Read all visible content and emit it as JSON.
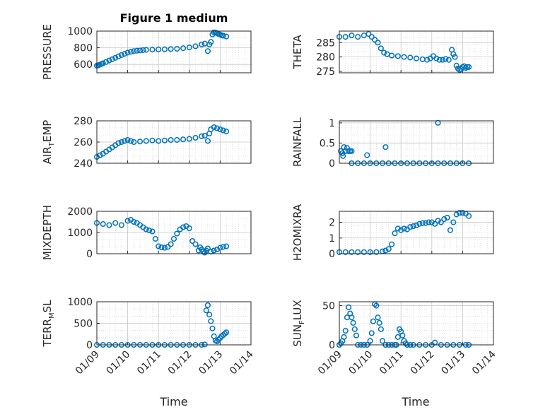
{
  "figure": {
    "title": "Figure 1 medium",
    "xlabel": "Time"
  },
  "chart_data": [
    {
      "type": "scatter",
      "ylabel": "PRESSURE",
      "ylim": [
        500,
        1000
      ],
      "yticks": [
        600,
        800,
        1000
      ],
      "xlim": [
        0,
        5
      ],
      "x": [
        0,
        0.05,
        0.1,
        0.15,
        0.2,
        0.3,
        0.4,
        0.5,
        0.6,
        0.7,
        0.8,
        0.9,
        1.0,
        1.1,
        1.2,
        1.3,
        1.4,
        1.5,
        1.6,
        1.8,
        2.0,
        2.2,
        2.4,
        2.6,
        2.8,
        3.0,
        3.2,
        3.4,
        3.5,
        3.6,
        3.65,
        3.7,
        3.75,
        3.8,
        3.85,
        3.9,
        3.95,
        4.0,
        4.05,
        4.1,
        4.2
      ],
      "y": [
        585,
        590,
        598,
        606,
        614,
        630,
        647,
        663,
        680,
        697,
        713,
        728,
        742,
        752,
        760,
        765,
        768,
        772,
        775,
        778,
        780,
        782,
        785,
        788,
        795,
        805,
        818,
        840,
        850,
        760,
        840,
        870,
        960,
        985,
        982,
        975,
        965,
        958,
        950,
        945,
        935
      ]
    },
    {
      "type": "scatter",
      "ylabel": "THETA",
      "ylim": [
        274.5,
        289
      ],
      "yticks": [
        275,
        280,
        285
      ],
      "xlim": [
        0,
        5
      ],
      "x": [
        0,
        0.2,
        0.4,
        0.6,
        0.8,
        0.95,
        1.05,
        1.15,
        1.25,
        1.35,
        1.45,
        1.55,
        1.7,
        1.9,
        2.1,
        2.3,
        2.5,
        2.7,
        2.85,
        2.95,
        3.05,
        3.15,
        3.25,
        3.35,
        3.45,
        3.55,
        3.65,
        3.7,
        3.75,
        3.8,
        3.85,
        3.9,
        3.95,
        4.0,
        4.05,
        4.1,
        4.15,
        4.2
      ],
      "y": [
        287,
        287,
        287.5,
        287,
        287.5,
        288,
        287,
        286,
        285,
        283,
        281.5,
        281,
        280.5,
        280.3,
        280,
        279.8,
        279.5,
        279.2,
        279,
        279.5,
        280.3,
        279.5,
        279,
        279,
        279.3,
        279,
        282.5,
        281,
        280,
        277,
        276,
        275.5,
        275.8,
        276.5,
        276.8,
        276.2,
        276.5,
        276.5
      ]
    },
    {
      "type": "scatter",
      "ylabel": "AIR_TEMP",
      "ylim": [
        240,
        280
      ],
      "yticks": [
        240,
        260,
        280
      ],
      "xlim": [
        0,
        5
      ],
      "x": [
        0,
        0.1,
        0.2,
        0.3,
        0.4,
        0.5,
        0.6,
        0.7,
        0.8,
        0.9,
        1.0,
        1.1,
        1.2,
        1.4,
        1.6,
        1.8,
        2.0,
        2.2,
        2.4,
        2.6,
        2.8,
        3.0,
        3.2,
        3.4,
        3.5,
        3.6,
        3.65,
        3.7,
        3.8,
        3.9,
        4.0,
        4.1,
        4.2
      ],
      "y": [
        246,
        247.5,
        249,
        251,
        253,
        255,
        257,
        259,
        260,
        261,
        262,
        261,
        260,
        260.5,
        261,
        261.5,
        261,
        261.5,
        262,
        262,
        262.5,
        263,
        264,
        265.5,
        266,
        261,
        268,
        272,
        274,
        273,
        272,
        271,
        270
      ]
    },
    {
      "type": "scatter",
      "ylabel": "RAINFALL",
      "ylim": [
        0,
        1.05
      ],
      "yticks": [
        0,
        0.5,
        1
      ],
      "xlim": [
        0,
        5
      ],
      "x": [
        0.05,
        0.1,
        0.12,
        0.15,
        0.2,
        0.25,
        0.3,
        0.35,
        0.4,
        0.9,
        1.5,
        3.2,
        0.4,
        0.6,
        0.8,
        1.0,
        1.2,
        1.4,
        1.6,
        1.8,
        2.0,
        2.2,
        2.4,
        2.6,
        2.8,
        3.0,
        3.2,
        3.4,
        3.6,
        3.8,
        4.0,
        4.2
      ],
      "y": [
        0.3,
        0.25,
        0.18,
        0.4,
        0.3,
        0.38,
        0.3,
        0.3,
        0.3,
        0.2,
        0.4,
        1.0,
        0,
        0,
        0,
        0,
        0,
        0,
        0,
        0,
        0,
        0,
        0,
        0,
        0,
        0,
        0,
        0,
        0,
        0,
        0,
        0
      ]
    },
    {
      "type": "scatter",
      "ylabel": "MIXDEPTH",
      "ylim": [
        0,
        2000
      ],
      "yticks": [
        0,
        1000,
        2000
      ],
      "xlim": [
        0,
        5
      ],
      "x": [
        0,
        0.2,
        0.4,
        0.6,
        0.8,
        1.0,
        1.1,
        1.2,
        1.3,
        1.4,
        1.5,
        1.6,
        1.7,
        1.8,
        1.9,
        2.0,
        2.1,
        2.2,
        2.3,
        2.4,
        2.5,
        2.6,
        2.7,
        2.8,
        2.9,
        3.0,
        3.1,
        3.2,
        3.3,
        3.35,
        3.4,
        3.45,
        3.5,
        3.55,
        3.6,
        3.7,
        3.8,
        3.9,
        4.0,
        4.1,
        4.2
      ],
      "y": [
        1450,
        1400,
        1350,
        1450,
        1350,
        1550,
        1600,
        1500,
        1450,
        1350,
        1250,
        1150,
        1100,
        1050,
        700,
        350,
        300,
        280,
        320,
        450,
        700,
        950,
        1150,
        1250,
        1300,
        1200,
        600,
        450,
        150,
        300,
        200,
        100,
        50,
        150,
        250,
        100,
        150,
        200,
        280,
        320,
        350
      ]
    },
    {
      "type": "scatter",
      "ylabel": "H2OMIXRA",
      "ylim": [
        0,
        2.7
      ],
      "yticks": [
        0,
        1,
        2
      ],
      "xlim": [
        0,
        5
      ],
      "x": [
        0,
        0.2,
        0.4,
        0.6,
        0.8,
        1.0,
        1.2,
        1.4,
        1.5,
        1.6,
        1.7,
        1.8,
        1.9,
        2.0,
        2.1,
        2.2,
        2.3,
        2.4,
        2.5,
        2.6,
        2.7,
        2.8,
        2.9,
        3.0,
        3.1,
        3.2,
        3.3,
        3.4,
        3.5,
        3.6,
        3.7,
        3.8,
        3.9,
        4.0,
        4.1,
        4.2
      ],
      "y": [
        0.1,
        0.1,
        0.1,
        0.1,
        0.1,
        0.1,
        0.1,
        0.15,
        0.2,
        0.3,
        0.6,
        1.3,
        1.6,
        1.5,
        1.6,
        1.55,
        1.7,
        1.75,
        1.8,
        1.9,
        1.95,
        1.95,
        2.0,
        2.0,
        1.9,
        2.1,
        2.0,
        2.2,
        2.3,
        1.5,
        2.0,
        2.5,
        2.6,
        2.6,
        2.55,
        2.4
      ]
    },
    {
      "type": "scatter",
      "ylabel": "TERR_MSL",
      "ylim": [
        0,
        1000
      ],
      "yticks": [
        0,
        500,
        1000
      ],
      "xlim": [
        0,
        5
      ],
      "x": [
        0,
        0.2,
        0.4,
        0.6,
        0.8,
        1.0,
        1.2,
        1.4,
        1.6,
        1.8,
        2.0,
        2.2,
        2.4,
        2.6,
        2.8,
        3.0,
        3.2,
        3.4,
        3.5,
        3.55,
        3.6,
        3.65,
        3.7,
        3.75,
        3.8,
        3.85,
        3.9,
        3.95,
        4.0,
        4.05,
        4.1,
        4.15,
        4.2
      ],
      "y": [
        0,
        0,
        0,
        0,
        0,
        0,
        0,
        0,
        0,
        0,
        0,
        0,
        0,
        0,
        0,
        0,
        0,
        0,
        10,
        800,
        920,
        700,
        550,
        380,
        200,
        100,
        80,
        120,
        160,
        200,
        230,
        260,
        290
      ]
    },
    {
      "type": "scatter",
      "ylabel": "SUN_FLUX",
      "ylim": [
        0,
        55
      ],
      "yticks": [
        0,
        50
      ],
      "xlim": [
        0,
        5
      ],
      "x": [
        0,
        0.05,
        0.1,
        0.15,
        0.2,
        0.25,
        0.3,
        0.35,
        0.4,
        0.45,
        0.5,
        0.55,
        0.6,
        0.7,
        0.8,
        0.9,
        1.0,
        1.05,
        1.1,
        1.15,
        1.2,
        1.25,
        1.3,
        1.35,
        1.4,
        1.5,
        1.6,
        1.7,
        1.8,
        1.85,
        1.9,
        1.95,
        2.0,
        2.05,
        2.1,
        2.15,
        2.2,
        2.3,
        2.4,
        2.6,
        2.8,
        3.0,
        3.1,
        3.3,
        3.5,
        3.7,
        3.9,
        4.1,
        4.2
      ],
      "y": [
        0,
        2,
        5,
        10,
        18,
        35,
        48,
        40,
        35,
        28,
        20,
        12,
        0,
        0,
        0,
        0,
        5,
        15,
        30,
        52,
        50,
        35,
        28,
        20,
        5,
        0,
        0,
        0,
        0,
        0,
        10,
        20,
        17,
        12,
        5,
        2,
        0,
        0,
        0,
        0,
        0,
        0,
        3,
        0,
        0,
        0,
        0,
        0,
        0
      ]
    }
  ],
  "bottom_xticks": [
    "01/09",
    "01/10",
    "01/11",
    "01/12",
    "01/13",
    "01/14"
  ]
}
